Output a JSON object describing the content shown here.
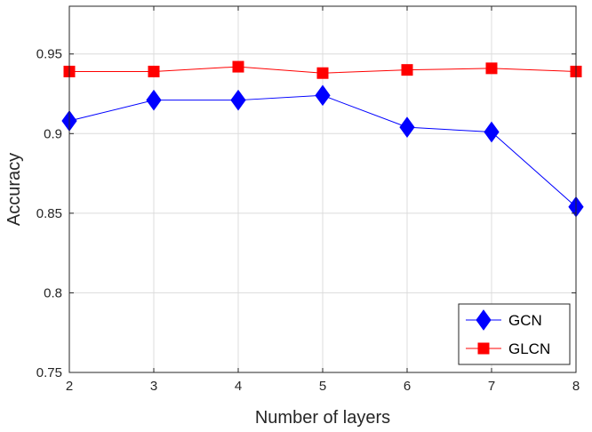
{
  "chart_data": {
    "type": "line",
    "xlabel": "Number of layers",
    "ylabel": "Accuracy",
    "x": [
      2,
      3,
      4,
      5,
      6,
      7,
      8
    ],
    "xlim": [
      2,
      8
    ],
    "ylim": [
      0.75,
      0.98
    ],
    "xticks": [
      "2",
      "3",
      "4",
      "5",
      "6",
      "7",
      "8"
    ],
    "yticks": [
      "0.75",
      "0.8",
      "0.85",
      "0.9",
      "0.95"
    ],
    "ytick_values": [
      0.75,
      0.8,
      0.85,
      0.9,
      0.95
    ],
    "grid": true,
    "legend_position": "bottom-right",
    "series": [
      {
        "name": "GCN",
        "values": [
          0.908,
          0.921,
          0.921,
          0.924,
          0.904,
          0.901,
          0.854
        ],
        "color": "#0000ff",
        "marker": "diamond"
      },
      {
        "name": "GLCN",
        "values": [
          0.939,
          0.939,
          0.942,
          0.938,
          0.94,
          0.941,
          0.939
        ],
        "color": "#ff0000",
        "marker": "square"
      }
    ]
  }
}
